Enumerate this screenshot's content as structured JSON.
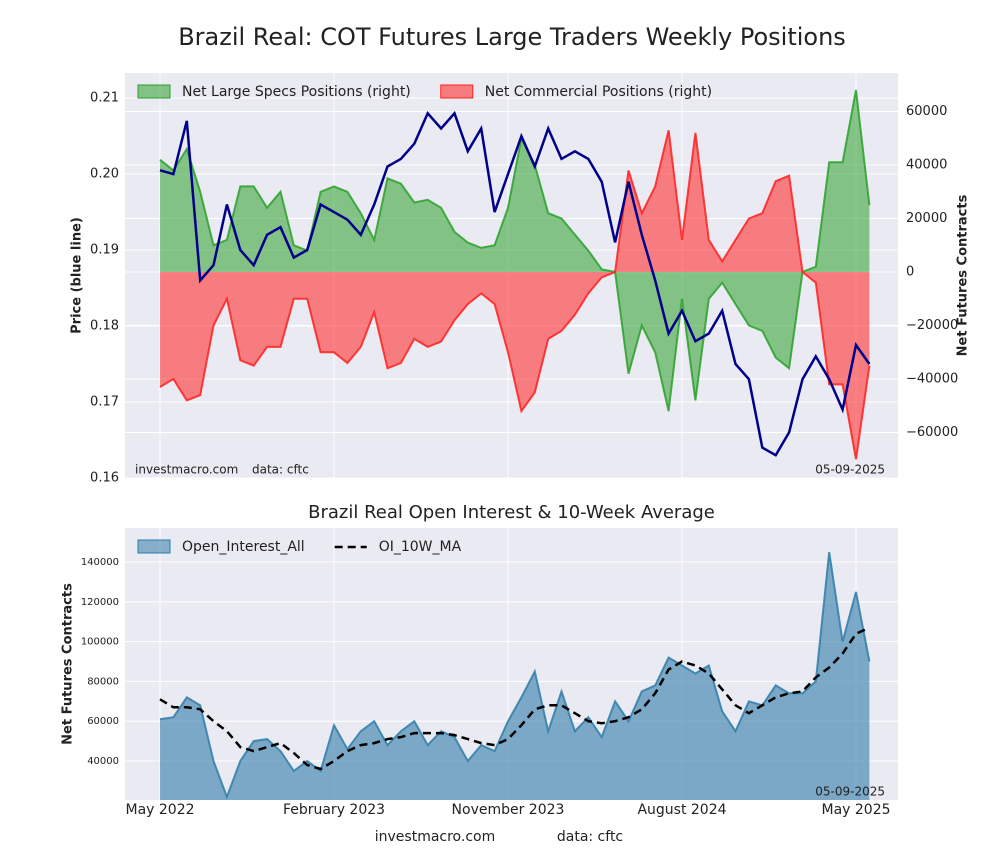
{
  "title": "Brazil Real: COT Futures Large Traders Weekly Positions",
  "footer": [
    "investmacro.com",
    "data: cftc"
  ],
  "chart_data": [
    {
      "type": "line",
      "ylabel": "Price (blue line)",
      "y2label": "Net Futures Contracts",
      "ylim": [
        0.16,
        0.2133
      ],
      "yticks": [
        0.16,
        0.17,
        0.18,
        0.19,
        {
          "value": 0.2,
          "label": "0.20"
        },
        0.21
      ],
      "y2lim": [
        -77000,
        74400
      ],
      "y2ticks": [
        {
          "value": -60000,
          "label": "−60000"
        },
        {
          "value": -40000,
          "label": "−40000"
        },
        {
          "value": -20000,
          "label": "−20000"
        },
        0,
        20000,
        40000,
        60000
      ],
      "grid": true,
      "legend": "upper left",
      "annotations": [
        "investmacro.com",
        "data: cftc",
        "05-09-2025"
      ],
      "series": [
        {
          "kind": "line",
          "color": "#00008b",
          "values": [
            0.2005,
            0.2,
            0.207,
            0.186,
            0.188,
            0.196,
            0.19,
            0.188,
            0.192,
            0.193,
            0.189,
            0.19,
            0.196,
            0.195,
            0.194,
            0.192,
            0.196,
            0.201,
            0.202,
            0.204,
            0.208,
            0.206,
            0.208,
            0.203,
            0.206,
            0.195,
            0.2,
            0.205,
            0.201,
            0.206,
            0.202,
            0.203,
            0.202,
            0.199,
            0.191,
            0.199,
            0.192,
            0.186,
            0.179,
            0.182,
            0.178,
            0.179,
            0.182,
            0.175,
            0.173,
            0.164,
            0.163,
            0.166,
            0.173,
            0.176,
            0.173,
            0.169,
            0.1775,
            0.175
          ]
        },
        {
          "name": "Net Large Specs Positions (right)",
          "kind": "area",
          "axis": "y2",
          "color": "#2ca02c",
          "values": [
            42000,
            38000,
            46000,
            30000,
            10000,
            12000,
            32000,
            32000,
            24000,
            30000,
            10000,
            8000,
            30000,
            32000,
            30000,
            22000,
            12000,
            35000,
            33000,
            26000,
            27000,
            24000,
            15000,
            11000,
            9000,
            10000,
            24000,
            50000,
            40000,
            22000,
            20000,
            14000,
            8000,
            1000,
            0,
            -38000,
            -20000,
            -30000,
            -52000,
            -10000,
            -48000,
            -10000,
            -4000,
            -12000,
            -20000,
            -22000,
            -32000,
            -36000,
            0,
            2000,
            41000,
            41000,
            68000,
            25000
          ]
        },
        {
          "name": "Net Commercial Positions (right)",
          "kind": "area",
          "axis": "y2",
          "color": "#ff2020",
          "values": [
            -43000,
            -40000,
            -48000,
            -46000,
            -20000,
            -10000,
            -33000,
            -35000,
            -28000,
            -28000,
            -10000,
            -10000,
            -30000,
            -30000,
            -34000,
            -28000,
            -15000,
            -36000,
            -34000,
            -25000,
            -28000,
            -26000,
            -18000,
            -12000,
            -8000,
            -12000,
            -30000,
            -52000,
            -45000,
            -25000,
            -22000,
            -16000,
            -8000,
            -2000,
            0,
            38000,
            22000,
            32000,
            53000,
            12000,
            52000,
            12000,
            4000,
            12000,
            20000,
            22000,
            34000,
            36000,
            0,
            -4000,
            -42000,
            -42000,
            -70000,
            -35000
          ]
        }
      ]
    },
    {
      "type": "line",
      "title": "Brazil Real Open Interest & 10-Week Average",
      "ylabel": "Net Futures Contracts",
      "ylim": [
        20400,
        157100
      ],
      "yticks": [
        40000,
        60000,
        80000,
        100000,
        120000,
        140000
      ],
      "grid": true,
      "legend": "upper left",
      "annotations": [
        "05-09-2025"
      ],
      "categories": [
        "May 2022",
        null,
        null,
        null,
        null,
        null,
        null,
        null,
        null,
        null,
        null,
        null,
        null,
        "February 2023",
        null,
        null,
        null,
        null,
        null,
        null,
        null,
        null,
        null,
        null,
        null,
        null,
        "November 2023",
        null,
        null,
        null,
        null,
        null,
        null,
        null,
        null,
        null,
        null,
        null,
        null,
        "August 2024",
        null,
        null,
        null,
        null,
        null,
        null,
        null,
        null,
        null,
        null,
        null,
        null,
        "May 2025",
        null
      ],
      "series": [
        {
          "name": "Open_Interest_All",
          "kind": "area",
          "color": "#2f7ca8",
          "values": [
            61000,
            62000,
            72000,
            68000,
            40000,
            22000,
            40000,
            50000,
            51000,
            45000,
            35000,
            40000,
            35000,
            58000,
            46000,
            55000,
            60000,
            48000,
            55000,
            60000,
            48000,
            55000,
            52000,
            40000,
            48000,
            45000,
            60000,
            72000,
            85000,
            55000,
            75000,
            55000,
            62000,
            52000,
            70000,
            60000,
            75000,
            78000,
            92000,
            88000,
            84000,
            88000,
            65000,
            55000,
            70000,
            68000,
            78000,
            74000,
            74000,
            80000,
            145000,
            100000,
            125000,
            90000
          ]
        },
        {
          "name": "OI_10W_MA",
          "kind": "line",
          "linestyle": "dashed",
          "color": "#000000",
          "values": [
            71000,
            67000,
            67000,
            66000,
            60000,
            55000,
            47000,
            45000,
            47000,
            49000,
            44000,
            38000,
            36000,
            40000,
            45000,
            48000,
            49000,
            51000,
            52000,
            54000,
            54000,
            54000,
            53000,
            51000,
            49000,
            48000,
            51000,
            58000,
            66000,
            68000,
            68000,
            64000,
            60000,
            59000,
            60000,
            62000,
            66000,
            74000,
            86000,
            90000,
            88000,
            84000,
            76000,
            68000,
            64000,
            68000,
            72000,
            74000,
            75000,
            82000,
            87000,
            94000,
            104000,
            107000
          ]
        }
      ]
    }
  ]
}
